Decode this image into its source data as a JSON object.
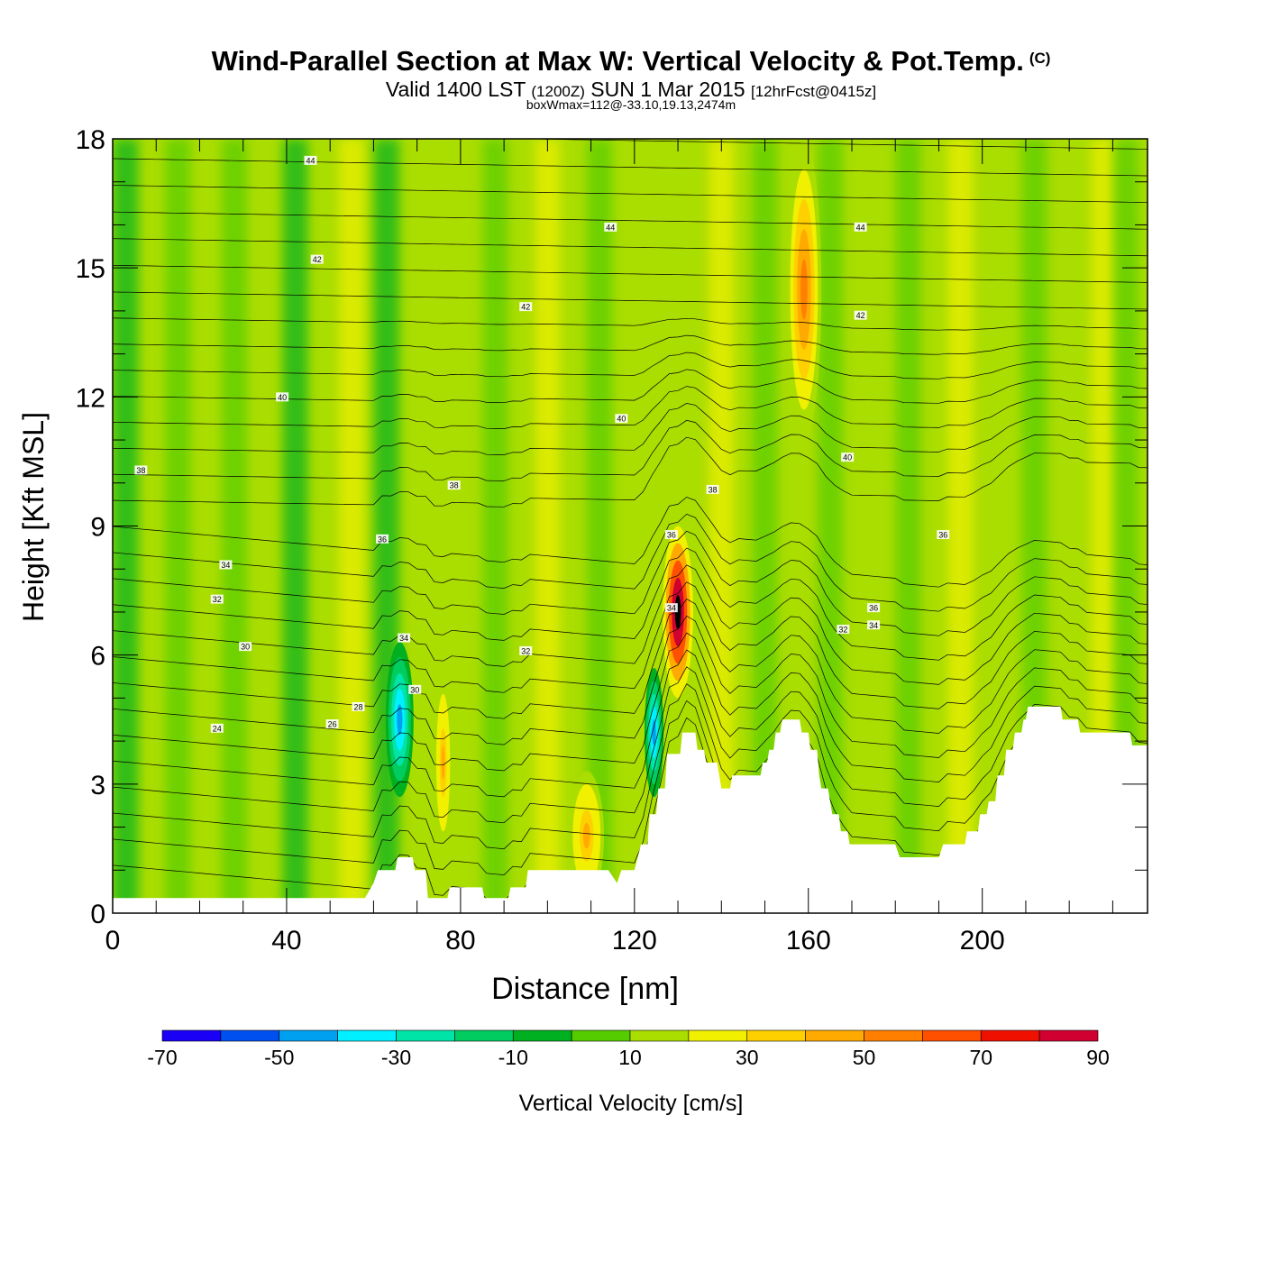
{
  "header": {
    "title": "Wind-Parallel Section at Max W: Vertical Velocity & Pot.Temp.",
    "copyright": "(C)",
    "valid_prefix": "Valid 1400 LST",
    "valid_utc": "(1200Z)",
    "valid_date": "SUN 1 Mar 2015",
    "forecast": "[12hrFcst@0415z]",
    "box_info": "boxWmax=112@-33.10,19.13,2474m"
  },
  "chart_data": {
    "type": "heatmap",
    "xlabel": "Distance [nm]",
    "ylabel": "Height [Kft MSL]",
    "xlim": [
      0,
      238
    ],
    "ylim": [
      0,
      18
    ],
    "x_ticks": [
      0,
      40,
      80,
      120,
      160,
      200
    ],
    "x_tick_labels": [
      "0",
      "40",
      "80",
      "120",
      "160",
      "200"
    ],
    "y_ticks": [
      0,
      3,
      6,
      9,
      12,
      15,
      18
    ],
    "y_tick_labels": [
      "0",
      "3",
      "6",
      "9",
      "12",
      "15",
      "18"
    ],
    "colorbar": {
      "label": "Vertical Velocity [cm/s]",
      "bins": [
        -80,
        -70,
        -60,
        -50,
        -40,
        -30,
        -20,
        -10,
        0,
        10,
        20,
        30,
        40,
        50,
        60,
        70,
        80,
        90,
        100
      ],
      "tick_values": [
        -70,
        -50,
        -30,
        -10,
        10,
        30,
        50,
        70,
        90
      ],
      "tick_labels": [
        "-70",
        "-50",
        "-30",
        "-10",
        "10",
        "30",
        "50",
        "70",
        "90"
      ],
      "colors": [
        "#1a00f5",
        "#0050f0",
        "#00a0f0",
        "#00f0ff",
        "#00e4a8",
        "#00cc60",
        "#00b020",
        "#55cc00",
        "#aadd00",
        "#f0f000",
        "#ffd000",
        "#ffaa00",
        "#ff8000",
        "#ff5000",
        "#f01000",
        "#d00030"
      ]
    },
    "wind_max_box": {
      "value_cm_s": 112,
      "lat": -33.1,
      "lon": 19.13,
      "height_m": 2474
    },
    "contours": {
      "field": "Potential temperature",
      "labels": [
        {
          "text": "44",
          "x": 45.5,
          "y": 17.5
        },
        {
          "text": "44",
          "x": 114.5,
          "y": 15.95
        },
        {
          "text": "44",
          "x": 172.0,
          "y": 15.95
        },
        {
          "text": "42",
          "x": 47.0,
          "y": 15.2
        },
        {
          "text": "42",
          "x": 95.0,
          "y": 14.1
        },
        {
          "text": "42",
          "x": 172.0,
          "y": 13.9
        },
        {
          "text": "40",
          "x": 39.0,
          "y": 12.0
        },
        {
          "text": "40",
          "x": 117.0,
          "y": 11.5
        },
        {
          "text": "40",
          "x": 169.0,
          "y": 10.6
        },
        {
          "text": "38",
          "x": 6.5,
          "y": 10.3
        },
        {
          "text": "38",
          "x": 78.5,
          "y": 9.95
        },
        {
          "text": "38",
          "x": 138.0,
          "y": 9.85
        },
        {
          "text": "36",
          "x": 62.0,
          "y": 8.7
        },
        {
          "text": "36",
          "x": 128.5,
          "y": 8.8
        },
        {
          "text": "36",
          "x": 191.0,
          "y": 8.8
        },
        {
          "text": "36",
          "x": 175.0,
          "y": 7.1
        },
        {
          "text": "34",
          "x": 26.0,
          "y": 8.1
        },
        {
          "text": "34",
          "x": 128.5,
          "y": 7.1
        },
        {
          "text": "34",
          "x": 175.0,
          "y": 6.7
        },
        {
          "text": "32",
          "x": 24.0,
          "y": 7.3
        },
        {
          "text": "32",
          "x": 95.0,
          "y": 6.1
        },
        {
          "text": "32",
          "x": 168.0,
          "y": 6.6
        },
        {
          "text": "30",
          "x": 30.5,
          "y": 6.2
        },
        {
          "text": "30",
          "x": 69.5,
          "y": 5.2
        },
        {
          "text": "34",
          "x": 67.0,
          "y": 6.4
        },
        {
          "text": "28",
          "x": 56.5,
          "y": 4.8
        },
        {
          "text": "26",
          "x": 50.5,
          "y": 4.4
        },
        {
          "text": "24",
          "x": 24.0,
          "y": 4.3
        }
      ]
    },
    "terrain_kft": [
      [
        0,
        0.35
      ],
      [
        58,
        0.35
      ],
      [
        60,
        0.7
      ],
      [
        61,
        1.0
      ],
      [
        65,
        1.0
      ],
      [
        65.5,
        1.3
      ],
      [
        69,
        1.3
      ],
      [
        69.5,
        1.0
      ],
      [
        72,
        1.0
      ],
      [
        72.5,
        0.35
      ],
      [
        77,
        0.35
      ],
      [
        77.5,
        0.6
      ],
      [
        85,
        0.6
      ],
      [
        85.5,
        0.35
      ],
      [
        91,
        0.35
      ],
      [
        91.5,
        0.6
      ],
      [
        95,
        0.6
      ],
      [
        95.5,
        1.0
      ],
      [
        110,
        1.0
      ],
      [
        112,
        1.0
      ],
      [
        114,
        1.0
      ],
      [
        116,
        0.7
      ],
      [
        117,
        1.0
      ],
      [
        120,
        1.0
      ],
      [
        121.5,
        1.6
      ],
      [
        123,
        1.6
      ],
      [
        123.5,
        2.3
      ],
      [
        125,
        2.3
      ],
      [
        125.5,
        2.9
      ],
      [
        127,
        2.9
      ],
      [
        127.5,
        3.7
      ],
      [
        130.5,
        3.7
      ],
      [
        131,
        4.2
      ],
      [
        134,
        4.2
      ],
      [
        134.5,
        3.8
      ],
      [
        136,
        3.8
      ],
      [
        136.5,
        3.5
      ],
      [
        139,
        3.5
      ],
      [
        139.5,
        3.2
      ],
      [
        140,
        2.9
      ],
      [
        142,
        2.9
      ],
      [
        142.5,
        3.2
      ],
      [
        147,
        3.2
      ],
      [
        149,
        3.2
      ],
      [
        149.5,
        3.5
      ],
      [
        150.5,
        3.5
      ],
      [
        151,
        3.8
      ],
      [
        152,
        3.8
      ],
      [
        152.5,
        4.2
      ],
      [
        153.5,
        4.2
      ],
      [
        154,
        4.5
      ],
      [
        158,
        4.5
      ],
      [
        158.5,
        4.2
      ],
      [
        160,
        4.2
      ],
      [
        160.5,
        3.8
      ],
      [
        162,
        3.8
      ],
      [
        162.5,
        3.2
      ],
      [
        163,
        2.9
      ],
      [
        164.5,
        2.9
      ],
      [
        165,
        2.6
      ],
      [
        165.5,
        2.3
      ],
      [
        167,
        2.3
      ],
      [
        167.5,
        1.9
      ],
      [
        169,
        1.9
      ],
      [
        169.5,
        1.6
      ],
      [
        180,
        1.6
      ],
      [
        181,
        1.3
      ],
      [
        190,
        1.3
      ],
      [
        191,
        1.6
      ],
      [
        196,
        1.6
      ],
      [
        196.5,
        1.9
      ],
      [
        199,
        1.9
      ],
      [
        199.5,
        2.3
      ],
      [
        201,
        2.3
      ],
      [
        201.5,
        2.6
      ],
      [
        203,
        2.6
      ],
      [
        203.5,
        3.2
      ],
      [
        205,
        3.2
      ],
      [
        205.5,
        3.8
      ],
      [
        207,
        3.8
      ],
      [
        207.5,
        4.2
      ],
      [
        209,
        4.2
      ],
      [
        209.5,
        4.5
      ],
      [
        210,
        4.5
      ],
      [
        210.5,
        4.8
      ],
      [
        218,
        4.8
      ],
      [
        218.5,
        4.5
      ],
      [
        222,
        4.5
      ],
      [
        222.5,
        4.2
      ],
      [
        234,
        4.2
      ],
      [
        234.5,
        3.9
      ],
      [
        238,
        3.9
      ]
    ],
    "features": [
      {
        "name": "downdraft-core",
        "x": 66,
        "y": 4.5,
        "rx": 3.2,
        "ry": 1.8,
        "w_cm_s": -55
      },
      {
        "name": "downdraft-core",
        "x": 124.5,
        "y": 4.2,
        "rx": 2.2,
        "ry": 1.5,
        "w_cm_s": -60
      },
      {
        "name": "updraft-core",
        "x": 130,
        "y": 7.0,
        "rx": 3.5,
        "ry": 2.0,
        "w_cm_s": 90
      },
      {
        "name": "updraft-stratospheric",
        "x": 159,
        "y": 14.5,
        "rx": 4.0,
        "ry": 3.5,
        "w_cm_s": 40
      },
      {
        "name": "updraft-low",
        "x": 109,
        "y": 1.8,
        "rx": 4.0,
        "ry": 1.5,
        "w_cm_s": 30
      },
      {
        "name": "updraft-low",
        "x": 76,
        "y": 3.5,
        "rx": 2.0,
        "ry": 2.0,
        "w_cm_s": 30
      }
    ]
  }
}
